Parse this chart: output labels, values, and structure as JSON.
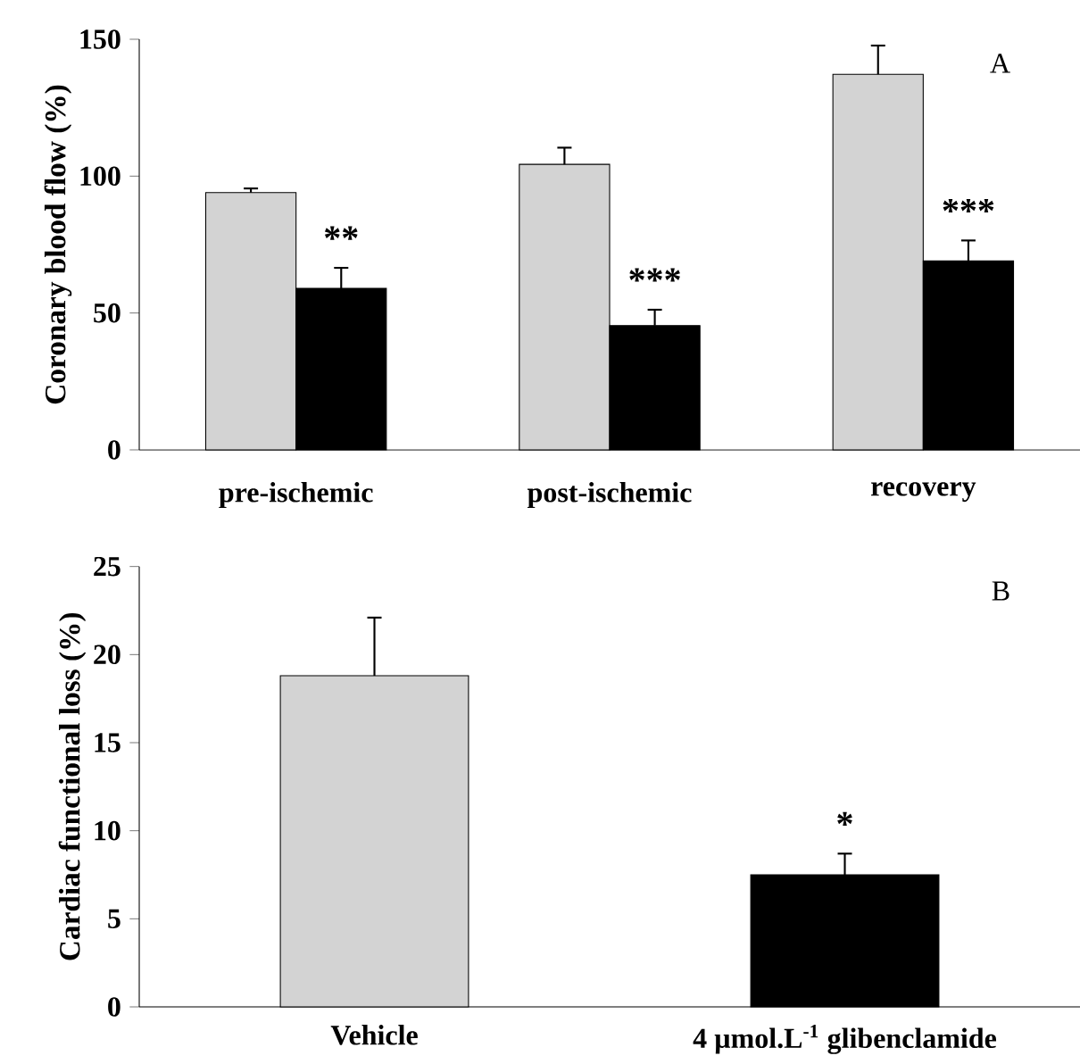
{
  "chart_data": [
    {
      "type": "bar",
      "ylabel": "Coronary blood flow (%)",
      "categories": [
        "pre-ischemic",
        "post-ischemic",
        "recovery"
      ],
      "series": [
        {
          "color": "#d3d3d3",
          "values": [
            94,
            104.3,
            137.2
          ],
          "errors": [
            1.5,
            6.1,
            10.5
          ]
        },
        {
          "color": "#000000",
          "values": [
            59,
            45.4,
            69
          ],
          "errors": [
            7.5,
            5.8,
            7.5
          ]
        }
      ],
      "ylim": [
        0,
        150
      ],
      "yticks": [
        0,
        50,
        100,
        150
      ],
      "annotations": [
        "A",
        {
          "text": "**",
          "x": "pre-ischemic",
          "y": 66.5
        },
        {
          "text": "***",
          "x": "post-ischemic",
          "y": 51.2
        },
        {
          "text": "***",
          "x": "recovery",
          "y": 76.5
        }
      ]
    },
    {
      "type": "bar",
      "ylabel": "Cardiac functional loss (%)",
      "categories": [
        "Vehicle",
        "4 µmol.L$^{-1}$ glibenclamide"
      ],
      "values": [
        18.8,
        7.5
      ],
      "colors": [
        "#d3d3d3",
        "#000000"
      ],
      "errors": [
        3.3,
        1.2
      ],
      "ylim": [
        0,
        25
      ],
      "yticks": [
        0,
        5,
        10,
        15,
        20,
        25
      ],
      "annotations": [
        "B",
        {
          "text": "*",
          "x": "4 µmol.L$^{-1}$ glibenclamide",
          "y": 8.7
        }
      ]
    }
  ]
}
